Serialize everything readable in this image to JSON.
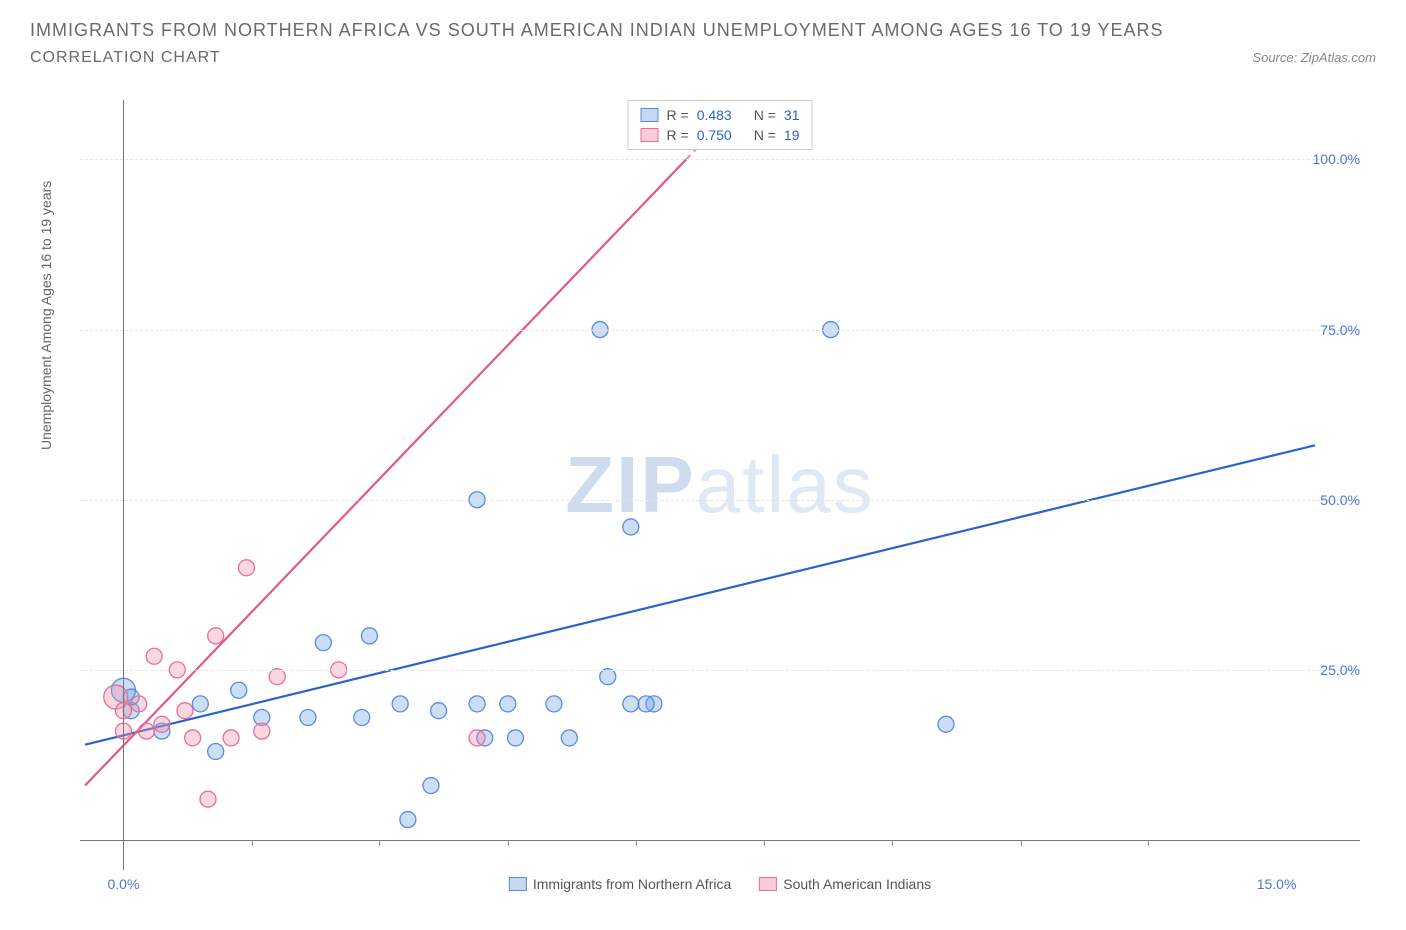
{
  "header": {
    "title": "IMMIGRANTS FROM NORTHERN AFRICA VS SOUTH AMERICAN INDIAN UNEMPLOYMENT AMONG AGES 16 TO 19 YEARS",
    "subtitle": "CORRELATION CHART",
    "source_label": "Source:",
    "source_value": "ZipAtlas.com"
  },
  "chart": {
    "type": "scatter",
    "ylabel": "Unemployment Among Ages 16 to 19 years",
    "x_min": -0.5,
    "x_max": 15.5,
    "y_min": 0,
    "y_max": 108,
    "x_ticks": [
      {
        "v": 0,
        "label": "0.0%"
      },
      {
        "v": 15,
        "label": "15.0%"
      }
    ],
    "x_minor_ticks": [
      1.67,
      3.33,
      5.0,
      6.67,
      8.33,
      10.0,
      11.67,
      13.33
    ],
    "y_ticks": [
      {
        "v": 25,
        "label": "25.0%"
      },
      {
        "v": 50,
        "label": "50.0%"
      },
      {
        "v": 75,
        "label": "75.0%"
      },
      {
        "v": 100,
        "label": "100.0%"
      }
    ],
    "colors": {
      "blue_fill": "rgba(110,160,230,0.35)",
      "blue_stroke": "#5a8cdc",
      "pink_fill": "rgba(240,140,170,0.35)",
      "pink_stroke": "#eb6e96",
      "blue_line": "#2a63c9",
      "pink_line": "#e05a86",
      "tick_text": "#4a76d4"
    },
    "marker_radius": 8,
    "marker_radius_big": 12,
    "line_width": 2.2,
    "watermark": "ZIPatlas",
    "legend_top": [
      {
        "swatch": "blue",
        "r_label": "R =",
        "r": "0.483",
        "n_label": "N =",
        "n": "31"
      },
      {
        "swatch": "pink",
        "r_label": "R =",
        "r": "0.750",
        "n_label": "N =",
        "n": "19"
      }
    ],
    "legend_bottom": [
      {
        "swatch": "blue",
        "label": "Immigrants from Northern Africa"
      },
      {
        "swatch": "pink",
        "label": "South American Indians"
      }
    ],
    "series": [
      {
        "name": "blue",
        "trend": {
          "x1": -0.5,
          "y1": 14,
          "x2": 15.5,
          "y2": 58
        },
        "points": [
          {
            "x": 0.0,
            "y": 22,
            "big": true
          },
          {
            "x": 0.1,
            "y": 19
          },
          {
            "x": 0.1,
            "y": 21
          },
          {
            "x": 0.5,
            "y": 16
          },
          {
            "x": 1.0,
            "y": 20
          },
          {
            "x": 1.2,
            "y": 13
          },
          {
            "x": 1.5,
            "y": 22
          },
          {
            "x": 1.8,
            "y": 18
          },
          {
            "x": 2.4,
            "y": 18
          },
          {
            "x": 2.6,
            "y": 29
          },
          {
            "x": 3.1,
            "y": 18
          },
          {
            "x": 3.2,
            "y": 30
          },
          {
            "x": 3.6,
            "y": 20
          },
          {
            "x": 3.7,
            "y": 3
          },
          {
            "x": 4.0,
            "y": 8
          },
          {
            "x": 4.1,
            "y": 19
          },
          {
            "x": 4.6,
            "y": 20
          },
          {
            "x": 4.6,
            "y": 50
          },
          {
            "x": 4.7,
            "y": 15
          },
          {
            "x": 5.0,
            "y": 20
          },
          {
            "x": 5.1,
            "y": 15
          },
          {
            "x": 5.6,
            "y": 20
          },
          {
            "x": 5.8,
            "y": 15
          },
          {
            "x": 6.2,
            "y": 75
          },
          {
            "x": 6.3,
            "y": 24
          },
          {
            "x": 6.6,
            "y": 20
          },
          {
            "x": 6.6,
            "y": 46
          },
          {
            "x": 6.9,
            "y": 20
          },
          {
            "x": 9.2,
            "y": 75
          },
          {
            "x": 10.7,
            "y": 17
          },
          {
            "x": 6.8,
            "y": 20
          }
        ]
      },
      {
        "name": "pink",
        "trend": {
          "x1": -0.5,
          "y1": 8,
          "x2": 8.0,
          "y2": 108
        },
        "points": [
          {
            "x": -0.1,
            "y": 21,
            "big": true
          },
          {
            "x": 0.0,
            "y": 19
          },
          {
            "x": 0.0,
            "y": 16
          },
          {
            "x": 0.2,
            "y": 20
          },
          {
            "x": 0.3,
            "y": 16
          },
          {
            "x": 0.4,
            "y": 27
          },
          {
            "x": 0.5,
            "y": 17
          },
          {
            "x": 0.7,
            "y": 25
          },
          {
            "x": 0.8,
            "y": 19
          },
          {
            "x": 0.9,
            "y": 15
          },
          {
            "x": 1.1,
            "y": 6
          },
          {
            "x": 1.2,
            "y": 30
          },
          {
            "x": 1.4,
            "y": 15
          },
          {
            "x": 1.6,
            "y": 40
          },
          {
            "x": 1.8,
            "y": 16
          },
          {
            "x": 2.0,
            "y": 24
          },
          {
            "x": 2.8,
            "y": 25
          },
          {
            "x": 4.6,
            "y": 15
          },
          {
            "x": 7.6,
            "y": 105
          }
        ]
      }
    ]
  }
}
